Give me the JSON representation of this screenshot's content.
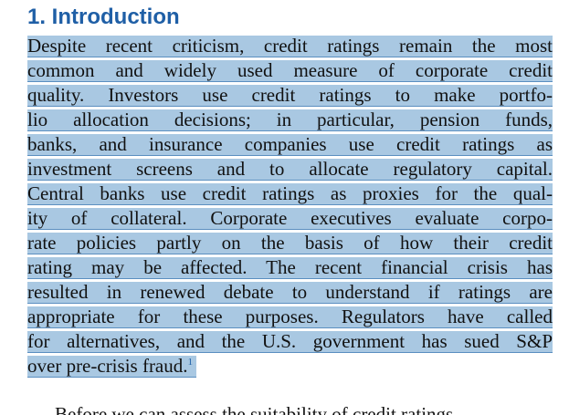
{
  "section": {
    "heading": "1. Introduction"
  },
  "paragraph": {
    "lines": [
      "Despite recent criticism, credit ratings remain the most",
      "common and widely used measure of corporate credit",
      "quality. Investors use credit ratings to make portfo-",
      "lio allocation decisions; in particular, pension funds,",
      "banks, and insurance companies use credit ratings as",
      "investment screens and to allocate regulatory capital.",
      "Central banks use credit ratings as proxies for the qual-",
      "ity of collateral. Corporate executives evaluate corpo-",
      "rate policies partly on the basis of how their credit",
      "rating may be affected. The recent financial crisis has",
      "resulted in renewed debate to understand if ratings are",
      "appropriate for these purposes. Regulators have called",
      "for alternatives, and the U.S. government has sued S&P",
      "over pre-crisis fraud."
    ],
    "footnote_ref": "1"
  },
  "next_paragraph": {
    "partial_line": "Before we can assess the suitability of credit ratings"
  },
  "colors": {
    "heading": "#1f5fa6",
    "highlight": "#a9c8e2",
    "underline": "#5b8fc0"
  }
}
